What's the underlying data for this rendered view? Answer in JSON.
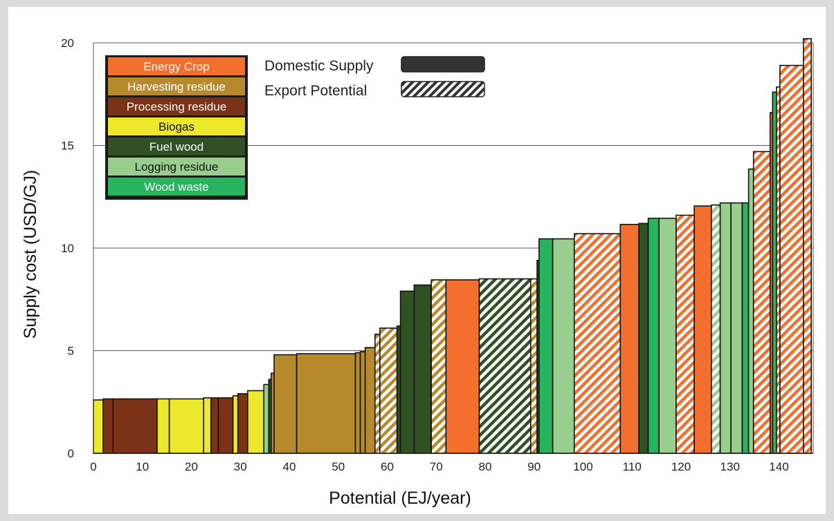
{
  "chart_data": {
    "type": "bar",
    "variant": "supply-cost-curve",
    "title": "",
    "xlabel": "Potential (EJ/year)",
    "ylabel": "Supply cost (USD/GJ)",
    "xlim": [
      0,
      147
    ],
    "ylim": [
      0,
      20
    ],
    "x_ticks": [
      0,
      10,
      20,
      30,
      40,
      50,
      60,
      70,
      80,
      90,
      100,
      110,
      120,
      130,
      140
    ],
    "y_ticks": [
      0,
      5,
      10,
      15,
      20
    ],
    "grid": "horizontal",
    "legend_position": "top-left",
    "categories": [
      {
        "key": "energy_crop",
        "label": "Energy Crop",
        "color": "#f26f2e",
        "text_color": "#ffffff"
      },
      {
        "key": "harvesting",
        "label": "Harvesting residue",
        "color": "#b88a2e",
        "text_color": "#ffffff"
      },
      {
        "key": "processing",
        "label": "Processing residue",
        "color": "#7a3316",
        "text_color": "#ffffff"
      },
      {
        "key": "biogas",
        "label": "Biogas",
        "color": "#eee82c",
        "text_color": "#111111"
      },
      {
        "key": "fuel_wood",
        "label": "Fuel wood",
        "color": "#2f5123",
        "text_color": "#ffffff"
      },
      {
        "key": "logging",
        "label": "Logging residue",
        "color": "#98cf8e",
        "text_color": "#111111"
      },
      {
        "key": "wood_waste",
        "label": "Wood waste",
        "color": "#28b35e",
        "text_color": "#ffffff"
      }
    ],
    "supply_legend": [
      {
        "label": "Domestic Supply",
        "pattern": "solid"
      },
      {
        "label": "Export Potential",
        "pattern": "hatched"
      }
    ],
    "segments": [
      {
        "x0": 0,
        "x1": 2,
        "y": 2.6,
        "category": "biogas",
        "export": false
      },
      {
        "x0": 2,
        "x1": 4,
        "y": 2.65,
        "category": "processing",
        "export": false
      },
      {
        "x0": 4,
        "x1": 13,
        "y": 2.65,
        "category": "processing",
        "export": false
      },
      {
        "x0": 13,
        "x1": 15.5,
        "y": 2.65,
        "category": "biogas",
        "export": false
      },
      {
        "x0": 15.5,
        "x1": 22.5,
        "y": 2.65,
        "category": "biogas",
        "export": false
      },
      {
        "x0": 22.5,
        "x1": 24,
        "y": 2.7,
        "category": "biogas",
        "export": false
      },
      {
        "x0": 24,
        "x1": 25.5,
        "y": 2.7,
        "category": "processing",
        "export": false
      },
      {
        "x0": 25.5,
        "x1": 28.5,
        "y": 2.7,
        "category": "processing",
        "export": false
      },
      {
        "x0": 28.5,
        "x1": 29.5,
        "y": 2.8,
        "category": "biogas",
        "export": false
      },
      {
        "x0": 29.5,
        "x1": 31.5,
        "y": 2.9,
        "category": "processing",
        "export": false
      },
      {
        "x0": 31.5,
        "x1": 34.8,
        "y": 3.05,
        "category": "biogas",
        "export": false
      },
      {
        "x0": 34.8,
        "x1": 35.8,
        "y": 3.35,
        "category": "logging",
        "export": false
      },
      {
        "x0": 35.8,
        "x1": 36.3,
        "y": 3.6,
        "category": "fuel_wood",
        "export": false
      },
      {
        "x0": 36.3,
        "x1": 36.9,
        "y": 3.9,
        "category": "harvesting",
        "export": false
      },
      {
        "x0": 36.9,
        "x1": 41.5,
        "y": 4.8,
        "category": "harvesting",
        "export": false
      },
      {
        "x0": 41.5,
        "x1": 53.5,
        "y": 4.85,
        "category": "harvesting",
        "export": false
      },
      {
        "x0": 53.5,
        "x1": 54.5,
        "y": 4.9,
        "category": "harvesting",
        "export": false
      },
      {
        "x0": 54.5,
        "x1": 55.5,
        "y": 4.95,
        "category": "harvesting",
        "export": false
      },
      {
        "x0": 55.5,
        "x1": 57.5,
        "y": 5.15,
        "category": "harvesting",
        "export": false
      },
      {
        "x0": 57.5,
        "x1": 58.5,
        "y": 5.8,
        "category": "harvesting",
        "export": true
      },
      {
        "x0": 58.5,
        "x1": 62,
        "y": 6.1,
        "category": "harvesting",
        "export": true
      },
      {
        "x0": 62,
        "x1": 62.7,
        "y": 6.2,
        "category": "fuel_wood",
        "export": false
      },
      {
        "x0": 62.7,
        "x1": 65.5,
        "y": 7.9,
        "category": "fuel_wood",
        "export": false
      },
      {
        "x0": 65.5,
        "x1": 69,
        "y": 8.2,
        "category": "fuel_wood",
        "export": false
      },
      {
        "x0": 69,
        "x1": 72,
        "y": 8.45,
        "category": "harvesting",
        "export": true
      },
      {
        "x0": 72,
        "x1": 78.8,
        "y": 8.45,
        "category": "energy_crop",
        "export": false
      },
      {
        "x0": 78.8,
        "x1": 89.3,
        "y": 8.5,
        "category": "fuel_wood",
        "export": true
      },
      {
        "x0": 89.3,
        "x1": 90.6,
        "y": 8.5,
        "category": "harvesting",
        "export": true
      },
      {
        "x0": 90.6,
        "x1": 91,
        "y": 9.4,
        "category": "fuel_wood",
        "export": false
      },
      {
        "x0": 91,
        "x1": 93.8,
        "y": 10.45,
        "category": "wood_waste",
        "export": false
      },
      {
        "x0": 93.8,
        "x1": 98.2,
        "y": 10.45,
        "category": "logging",
        "export": false
      },
      {
        "x0": 98.2,
        "x1": 107.6,
        "y": 10.7,
        "category": "energy_crop",
        "export": true
      },
      {
        "x0": 107.6,
        "x1": 111.4,
        "y": 11.15,
        "category": "energy_crop",
        "export": false
      },
      {
        "x0": 111.4,
        "x1": 113.3,
        "y": 11.2,
        "category": "fuel_wood",
        "export": false
      },
      {
        "x0": 113.3,
        "x1": 115.5,
        "y": 11.45,
        "category": "wood_waste",
        "export": false
      },
      {
        "x0": 115.5,
        "x1": 119,
        "y": 11.45,
        "category": "logging",
        "export": false
      },
      {
        "x0": 119,
        "x1": 122.7,
        "y": 11.6,
        "category": "energy_crop",
        "export": true
      },
      {
        "x0": 122.7,
        "x1": 126.2,
        "y": 12.05,
        "category": "energy_crop",
        "export": false
      },
      {
        "x0": 126.2,
        "x1": 128,
        "y": 12.1,
        "category": "logging",
        "export": true
      },
      {
        "x0": 128,
        "x1": 130.2,
        "y": 12.2,
        "category": "logging",
        "export": false
      },
      {
        "x0": 130.2,
        "x1": 132.5,
        "y": 12.2,
        "category": "logging",
        "export": false
      },
      {
        "x0": 132.5,
        "x1": 133.8,
        "y": 12.2,
        "category": "wood_waste",
        "export": false
      },
      {
        "x0": 133.8,
        "x1": 134.8,
        "y": 13.85,
        "category": "logging",
        "export": false
      },
      {
        "x0": 134.8,
        "x1": 138.2,
        "y": 14.7,
        "category": "energy_crop",
        "export": true
      },
      {
        "x0": 138.2,
        "x1": 138.7,
        "y": 16.6,
        "category": "energy_crop",
        "export": false
      },
      {
        "x0": 138.7,
        "x1": 139.5,
        "y": 17.6,
        "category": "wood_waste",
        "export": false
      },
      {
        "x0": 139.5,
        "x1": 140.2,
        "y": 17.85,
        "category": "energy_crop",
        "export": true
      },
      {
        "x0": 140.2,
        "x1": 145,
        "y": 18.9,
        "category": "energy_crop",
        "export": true
      },
      {
        "x0": 145,
        "x1": 146.6,
        "y": 20.2,
        "category": "energy_crop",
        "export": true
      }
    ]
  }
}
